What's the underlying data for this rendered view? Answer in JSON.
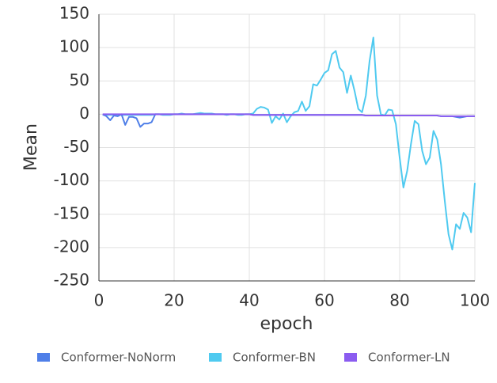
{
  "chart_data": {
    "type": "line",
    "x_label": "epoch",
    "y_label": "Mean",
    "x": [
      1,
      2,
      3,
      4,
      5,
      6,
      7,
      8,
      9,
      10,
      11,
      12,
      13,
      14,
      15,
      16,
      17,
      18,
      19,
      20,
      21,
      22,
      23,
      24,
      25,
      26,
      27,
      28,
      29,
      30,
      31,
      32,
      33,
      34,
      35,
      36,
      37,
      38,
      39,
      40,
      41,
      42,
      43,
      44,
      45,
      46,
      47,
      48,
      49,
      50,
      51,
      52,
      53,
      54,
      55,
      56,
      57,
      58,
      59,
      60,
      61,
      62,
      63,
      64,
      65,
      66,
      67,
      68,
      69,
      70,
      71,
      72,
      73,
      74,
      75,
      76,
      77,
      78,
      79,
      80,
      81,
      82,
      83,
      84,
      85,
      86,
      87,
      88,
      89,
      90,
      91,
      92,
      93,
      94,
      95,
      96,
      97,
      98,
      99,
      100
    ],
    "series": [
      {
        "name": "Conformer-NoNorm",
        "color": "#4f7fe8",
        "values": [
          0,
          -3,
          -9,
          -2,
          -3,
          0,
          -16,
          -4,
          -4,
          -6,
          -19,
          -14,
          -14,
          -12,
          0,
          0,
          0,
          0,
          0,
          0,
          0,
          0,
          0,
          0,
          0,
          0,
          0,
          0,
          0,
          0,
          0,
          0,
          0,
          0,
          0,
          0,
          0,
          0,
          0,
          0,
          -1,
          -1,
          -1,
          -1,
          -1,
          -1,
          -1,
          -1,
          -1,
          -1,
          -1,
          -1,
          -1,
          -1,
          -1,
          -1,
          -1,
          -1,
          -1,
          -1,
          -1,
          -1,
          -1,
          -1,
          -1,
          -1,
          -1,
          -1,
          -1,
          -1,
          -2,
          -2,
          -2,
          -2,
          -2,
          -2,
          -2,
          -2,
          -2,
          -2,
          -2,
          -2,
          -2,
          -2,
          -2,
          -2,
          -2,
          -2,
          -2,
          -2,
          -3,
          -3,
          -3,
          -3,
          -4,
          -5,
          -4,
          -3,
          -3,
          -3
        ]
      },
      {
        "name": "Conformer-BN",
        "color": "#4fcaf0",
        "values": [
          -1,
          -1,
          -1,
          -1,
          -1,
          -1,
          -1,
          -1,
          -1,
          -1,
          -1,
          -1,
          -1,
          -1,
          0,
          0,
          -1,
          -1,
          -1,
          0,
          0,
          1,
          0,
          0,
          0,
          1,
          2,
          1,
          1,
          1,
          0,
          0,
          0,
          -1,
          0,
          0,
          -1,
          -1,
          0,
          0,
          1,
          8,
          11,
          10,
          7,
          -13,
          -3,
          -8,
          1,
          -12,
          -3,
          3,
          5,
          19,
          5,
          12,
          45,
          43,
          52,
          62,
          66,
          90,
          95,
          70,
          63,
          32,
          58,
          35,
          8,
          3,
          28,
          80,
          115,
          28,
          0,
          -2,
          7,
          6,
          -15,
          -65,
          -110,
          -85,
          -45,
          -10,
          -15,
          -55,
          -75,
          -65,
          -25,
          -38,
          -75,
          -130,
          -180,
          -203,
          -165,
          -172,
          -148,
          -155,
          -177,
          -103
        ]
      },
      {
        "name": "Conformer-LN",
        "color": "#8b5cf0",
        "values": [
          0,
          0,
          0,
          0,
          0,
          0,
          0,
          0,
          0,
          0,
          0,
          0,
          0,
          0,
          0,
          0,
          0,
          0,
          0,
          0,
          0,
          0,
          0,
          0,
          0,
          0,
          0,
          0,
          0,
          0,
          0,
          0,
          0,
          0,
          0,
          0,
          0,
          0,
          0,
          0,
          -1,
          -1,
          -1,
          -1,
          -1,
          -1,
          -1,
          -1,
          -1,
          -1,
          -1,
          -1,
          -1,
          -1,
          -1,
          -1,
          -1,
          -1,
          -1,
          -1,
          -1,
          -1,
          -1,
          -1,
          -1,
          -1,
          -1,
          -1,
          -1,
          -1,
          -2,
          -2,
          -2,
          -2,
          -2,
          -2,
          -2,
          -2,
          -2,
          -2,
          -2,
          -2,
          -2,
          -2,
          -2,
          -2,
          -2,
          -2,
          -2,
          -2,
          -3,
          -3,
          -3,
          -3,
          -3,
          -3,
          -3,
          -3,
          -3,
          -3
        ]
      }
    ],
    "xlim": [
      0,
      100
    ],
    "xticks": [
      0,
      20,
      40,
      60,
      80,
      100
    ],
    "ylim": [
      -250,
      150
    ],
    "yticks": [
      -250,
      -200,
      -150,
      -100,
      -50,
      0,
      50,
      100,
      150
    ],
    "grid": true
  }
}
